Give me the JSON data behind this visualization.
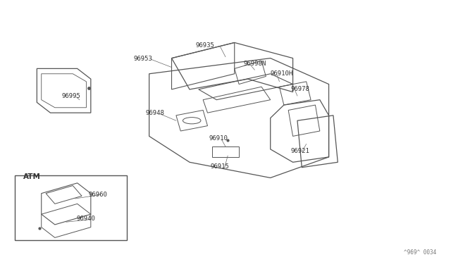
{
  "bg_color": "#ffffff",
  "line_color": "#555555",
  "text_color": "#333333",
  "fig_width": 6.4,
  "fig_height": 3.72,
  "watermark": "^969^ 0034",
  "atm_label": "ATM"
}
